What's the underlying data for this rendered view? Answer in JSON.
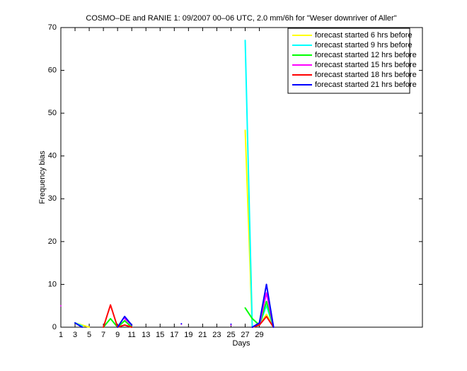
{
  "chart_data": {
    "type": "line",
    "title": "COSMO–DE and RANIE 1: 09/2007 00–06 UTC, 2.0 mm/6h for \"Weser downriver of Aller\"",
    "xlabel": "Days",
    "ylabel": "Frequency bias",
    "x": [
      1,
      2,
      3,
      4,
      5,
      6,
      7,
      8,
      9,
      10,
      11,
      12,
      13,
      14,
      15,
      16,
      17,
      18,
      19,
      20,
      21,
      22,
      23,
      24,
      25,
      26,
      27,
      28,
      29,
      30,
      31
    ],
    "series": [
      {
        "name": "forecast started 6 hrs before",
        "color": "#ffff00",
        "values": [
          null,
          null,
          1,
          0.5,
          0,
          null,
          null,
          null,
          null,
          null,
          null,
          null,
          null,
          null,
          null,
          null,
          null,
          null,
          null,
          null,
          null,
          null,
          null,
          null,
          null,
          null,
          46,
          0,
          0.5,
          3,
          0
        ]
      },
      {
        "name": "forecast started 9 hrs before",
        "color": "#00ffff",
        "values": [
          null,
          null,
          1,
          0.3,
          null,
          null,
          null,
          null,
          null,
          null,
          null,
          null,
          null,
          null,
          null,
          null,
          null,
          null,
          null,
          null,
          null,
          null,
          null,
          null,
          null,
          null,
          67,
          0,
          0.5,
          5,
          0
        ]
      },
      {
        "name": "forecast started 12 hrs before",
        "color": "#00ff00",
        "values": [
          null,
          null,
          null,
          null,
          null,
          null,
          0,
          2,
          0,
          1.5,
          0,
          null,
          null,
          null,
          null,
          null,
          null,
          null,
          null,
          null,
          null,
          null,
          null,
          null,
          null,
          null,
          4.5,
          2,
          0.5,
          6,
          0
        ]
      },
      {
        "name": "forecast started 15 hrs before",
        "color": "#ff00ff",
        "values": [
          5,
          null,
          null,
          null,
          null,
          null,
          null,
          null,
          null,
          2,
          0.5,
          null,
          null,
          null,
          null,
          null,
          null,
          0.7,
          null,
          null,
          null,
          null,
          null,
          null,
          0.5,
          null,
          null,
          null,
          0.5,
          8,
          0
        ]
      },
      {
        "name": "forecast started 18 hrs before",
        "color": "#ff0000",
        "values": [
          null,
          null,
          null,
          null,
          null,
          null,
          0,
          5.2,
          0,
          0.5,
          0,
          null,
          null,
          null,
          null,
          null,
          null,
          null,
          null,
          null,
          null,
          null,
          null,
          null,
          null,
          null,
          null,
          0,
          0.5,
          2.5,
          0
        ]
      },
      {
        "name": "forecast started 21 hrs before",
        "color": "#0000ff",
        "values": [
          null,
          null,
          1,
          0,
          null,
          null,
          null,
          null,
          0,
          2.5,
          0.5,
          null,
          null,
          null,
          null,
          null,
          null,
          0.8,
          null,
          null,
          null,
          null,
          null,
          null,
          0.7,
          null,
          null,
          0,
          1,
          10,
          0
        ]
      }
    ],
    "xlim": [
      1,
      52
    ],
    "xticks": [
      1,
      3,
      5,
      7,
      9,
      11,
      13,
      15,
      17,
      19,
      21,
      23,
      25,
      27,
      29
    ],
    "ylim": [
      0,
      70
    ],
    "yticks": [
      0,
      10,
      20,
      30,
      40,
      50,
      60,
      70
    ],
    "legend": "upper right"
  }
}
